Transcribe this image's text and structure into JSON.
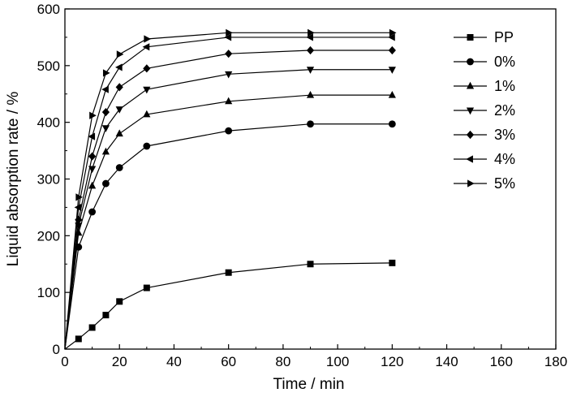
{
  "chart_data": {
    "type": "line",
    "title": "",
    "xlabel": "Time / min",
    "ylabel": "Liquid absorption rate / %",
    "xlim": [
      0,
      180
    ],
    "ylim": [
      0,
      600
    ],
    "xticks": [
      0,
      20,
      40,
      60,
      80,
      100,
      120,
      140,
      160,
      180
    ],
    "yticks": [
      0,
      100,
      200,
      300,
      400,
      500,
      600
    ],
    "grid": false,
    "legend_position": "top-right",
    "x": [
      0,
      5,
      10,
      15,
      20,
      30,
      60,
      90,
      120
    ],
    "series": [
      {
        "name": "PP",
        "marker": "square",
        "values": [
          0,
          18,
          38,
          60,
          84,
          108,
          135,
          150,
          152
        ]
      },
      {
        "name": "0%",
        "marker": "circle",
        "values": [
          0,
          180,
          242,
          292,
          320,
          358,
          385,
          397,
          397
        ]
      },
      {
        "name": "1%",
        "marker": "triangle-up",
        "values": [
          0,
          205,
          288,
          348,
          380,
          414,
          437,
          448,
          448
        ]
      },
      {
        "name": "2%",
        "marker": "triangle-down",
        "values": [
          0,
          218,
          318,
          390,
          423,
          458,
          485,
          493,
          493
        ]
      },
      {
        "name": "3%",
        "marker": "diamond",
        "values": [
          0,
          228,
          340,
          418,
          462,
          495,
          521,
          527,
          527
        ]
      },
      {
        "name": "4%",
        "marker": "triangle-left",
        "values": [
          0,
          250,
          375,
          458,
          497,
          533,
          550,
          550,
          550
        ]
      },
      {
        "name": "5%",
        "marker": "triangle-right",
        "values": [
          0,
          268,
          412,
          487,
          520,
          547,
          558,
          558,
          558
        ]
      }
    ]
  }
}
